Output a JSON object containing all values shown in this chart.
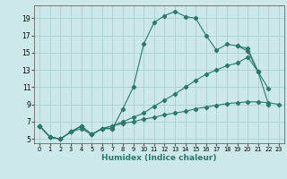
{
  "xlabel": "Humidex (Indice chaleur)",
  "bg_color": "#cce8e8",
  "grid_color": "#aacfcf",
  "line_color": "#2a7a6a",
  "xlim": [
    -0.5,
    23.5
  ],
  "ylim": [
    4.5,
    20.5
  ],
  "xticks": [
    0,
    1,
    2,
    3,
    4,
    5,
    6,
    7,
    8,
    9,
    10,
    11,
    12,
    13,
    14,
    15,
    16,
    17,
    18,
    19,
    20,
    21,
    22,
    23
  ],
  "yticks": [
    5,
    7,
    9,
    11,
    13,
    15,
    17,
    19
  ],
  "series": [
    {
      "x": [
        0,
        1,
        2,
        3,
        4,
        5,
        6,
        7,
        8,
        9,
        10,
        11,
        12,
        13,
        14,
        15,
        16,
        17,
        18,
        19,
        20,
        21,
        22,
        23
      ],
      "y": [
        6.5,
        5.2,
        5.0,
        5.8,
        6.5,
        5.5,
        6.2,
        6.2,
        8.5,
        11.0,
        16.0,
        18.5,
        19.3,
        19.8,
        19.2,
        19.0,
        17.0,
        15.3,
        16.0,
        15.8,
        15.2,
        12.8,
        10.8,
        null
      ]
    },
    {
      "x": [
        0,
        1,
        2,
        3,
        4,
        5,
        6,
        7,
        8,
        9,
        10,
        11,
        12,
        13,
        14,
        15,
        16,
        17,
        18,
        19,
        20,
        21,
        22,
        23
      ],
      "y": [
        6.5,
        5.2,
        5.0,
        5.8,
        6.5,
        5.5,
        6.2,
        6.2,
        null,
        null,
        null,
        null,
        null,
        null,
        null,
        null,
        null,
        null,
        null,
        15.8,
        15.5,
        12.8,
        null,
        null
      ]
    },
    {
      "x": [
        0,
        1,
        2,
        3,
        4,
        5,
        6,
        7,
        8,
        9,
        10,
        11,
        12,
        13,
        14,
        15,
        16,
        17,
        18,
        19,
        20,
        21,
        22,
        23
      ],
      "y": [
        6.5,
        5.2,
        5.0,
        5.8,
        6.5,
        5.5,
        6.2,
        6.5,
        7.0,
        7.5,
        8.0,
        8.8,
        9.5,
        10.2,
        11.0,
        11.8,
        12.5,
        13.0,
        13.5,
        13.8,
        14.5,
        12.8,
        9.0,
        null
      ]
    },
    {
      "x": [
        0,
        1,
        2,
        3,
        4,
        5,
        6,
        7,
        8,
        9,
        10,
        11,
        12,
        13,
        14,
        15,
        16,
        17,
        18,
        19,
        20,
        21,
        22,
        23
      ],
      "y": [
        6.5,
        5.2,
        5.0,
        5.8,
        6.2,
        5.5,
        6.2,
        6.5,
        6.8,
        7.0,
        7.3,
        7.5,
        7.8,
        8.0,
        8.2,
        8.5,
        8.7,
        8.9,
        9.1,
        9.2,
        9.3,
        9.3,
        9.2,
        9.0
      ]
    }
  ]
}
